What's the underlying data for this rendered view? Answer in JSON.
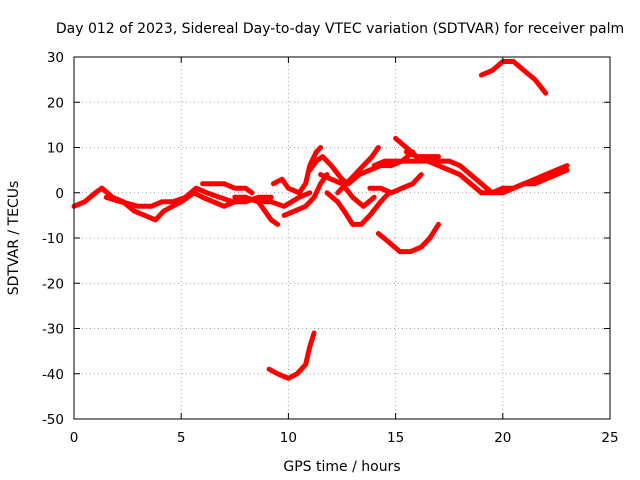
{
  "chart_data": {
    "type": "line",
    "title": "Day 012 of 2023, Sidereal Day-to-day VTEC variation (SDTVAR) for receiver palm",
    "xlabel": "GPS time / hours",
    "ylabel": "SDTVAR / TECUs",
    "xlim": [
      0,
      25
    ],
    "ylim": [
      -50,
      30
    ],
    "xticks": [
      0,
      5,
      10,
      15,
      20,
      25
    ],
    "yticks": [
      -50,
      -40,
      -30,
      -20,
      -10,
      0,
      10,
      20,
      30
    ],
    "xtick_labels": [
      "0",
      "5",
      "10",
      "15",
      "20",
      "25"
    ],
    "ytick_labels": [
      "-50",
      "-40",
      "-30",
      "-20",
      "-10",
      "0",
      "10",
      "20",
      "30"
    ],
    "grid": true,
    "color": "#ff0000",
    "series": [
      {
        "name": "s1",
        "x": [
          0,
          0.5,
          1,
          1.3,
          1.8,
          2.3,
          2.8,
          3.3,
          3.8,
          4.2,
          4.6,
          5.0,
          5.3,
          5.6,
          6.0,
          6.5,
          7.0,
          7.5,
          8.0,
          8.6,
          9.2,
          9.5
        ],
        "y": [
          -3,
          -2,
          0,
          1,
          -1,
          -2,
          -4,
          -5,
          -6,
          -4,
          -3,
          -2,
          -1,
          0,
          -1,
          -2,
          -3,
          -2,
          -1,
          -2,
          -6,
          -7
        ]
      },
      {
        "name": "s2",
        "x": [
          1.5,
          2.2,
          3.0,
          3.6,
          4.1,
          4.6,
          5.2,
          5.7,
          6.2,
          6.8,
          7.4,
          8.0,
          8.6,
          9.2
        ],
        "y": [
          -1,
          -2,
          -3,
          -3,
          -2,
          -2,
          -1,
          1,
          0,
          -1,
          -2,
          -2,
          -1,
          -1
        ]
      },
      {
        "name": "s3",
        "x": [
          6,
          6.5,
          7,
          7.5,
          8,
          8.3
        ],
        "y": [
          2,
          2,
          2,
          1,
          1,
          0
        ]
      },
      {
        "name": "s4",
        "x": [
          7.5,
          8,
          8.6,
          9.2,
          9.8,
          10.5,
          11
        ],
        "y": [
          -1,
          -1,
          -2,
          -2,
          -3,
          -1,
          0
        ]
      },
      {
        "name": "s5",
        "x": [
          9.3,
          9.7,
          10,
          10.5,
          10.8,
          11.0,
          11.3,
          11.5
        ],
        "y": [
          2,
          3,
          1,
          0,
          2,
          6,
          9,
          10
        ]
      },
      {
        "name": "s6",
        "x": [
          9.8,
          10.3,
          10.8,
          11.2,
          11.5,
          11.8
        ],
        "y": [
          -5,
          -4,
          -3,
          -1,
          2,
          4
        ]
      },
      {
        "name": "s7",
        "x": [
          11.0,
          11.3,
          11.6,
          12.0,
          12.5,
          12.8
        ],
        "y": [
          5,
          7,
          8,
          6,
          3,
          2
        ]
      },
      {
        "name": "s8",
        "x": [
          11.5,
          12,
          12.5,
          13,
          13.5,
          14
        ],
        "y": [
          4,
          3,
          2,
          -1,
          -3,
          -1
        ]
      },
      {
        "name": "s9",
        "x": [
          11.8,
          12.3,
          12.6,
          13.0,
          13.4,
          13.8,
          14.3,
          14.7
        ],
        "y": [
          0,
          -2,
          -4,
          -7,
          -7,
          -5,
          -2,
          0
        ]
      },
      {
        "name": "s10",
        "x": [
          12.3,
          12.7,
          13.1,
          13.5,
          13.9,
          14.2
        ],
        "y": [
          0,
          2,
          4,
          6,
          8,
          10
        ]
      },
      {
        "name": "s11",
        "x": [
          12.8,
          13.3,
          13.8,
          14.3,
          14.8,
          15.3,
          15.8
        ],
        "y": [
          2,
          4,
          5,
          6,
          6,
          7,
          9
        ]
      },
      {
        "name": "s12",
        "x": [
          13.8,
          14.3,
          14.8,
          15.3,
          15.8,
          16.2
        ],
        "y": [
          1,
          1,
          0,
          1,
          2,
          4
        ]
      },
      {
        "name": "s13",
        "x": [
          14.0,
          14.5,
          15.0,
          15.5,
          16.0,
          16.5,
          17.0,
          17.5,
          18.0,
          18.5,
          19.0,
          19.5,
          20.0,
          20.5,
          21.0,
          21.5,
          22.0,
          22.5,
          23.0
        ],
        "y": [
          6,
          7,
          7,
          7,
          7,
          7,
          6,
          5,
          4,
          2,
          0,
          0,
          1,
          1,
          2,
          3,
          4,
          5,
          6
        ]
      },
      {
        "name": "s14",
        "x": [
          15.0,
          15.5,
          16,
          16.5,
          17,
          17.5,
          18,
          18.5,
          19,
          19.5,
          20,
          20.5,
          21,
          21.5,
          22,
          22.5,
          23
        ],
        "y": [
          12,
          10,
          8,
          7,
          7,
          7,
          6,
          4,
          2,
          0,
          0,
          1,
          2,
          2,
          3,
          4,
          5
        ]
      },
      {
        "name": "s15",
        "x": [
          15.5,
          16,
          16.5,
          17
        ],
        "y": [
          9,
          8,
          8,
          8
        ]
      },
      {
        "name": "s16",
        "x": [
          14.2,
          14.7,
          15.2,
          15.7,
          16.2,
          16.6,
          17.0
        ],
        "y": [
          -9,
          -11,
          -13,
          -13,
          -12,
          -10,
          -7
        ]
      },
      {
        "name": "s17",
        "x": [
          9.1,
          9.5,
          10,
          10.4,
          10.8,
          11.0,
          11.2
        ],
        "y": [
          -39,
          -40,
          -41,
          -40,
          -38,
          -34,
          -31
        ]
      },
      {
        "name": "s18",
        "x": [
          19.0,
          19.5,
          20.0,
          20.5,
          21.0,
          21.5,
          22.0
        ],
        "y": [
          26,
          27,
          29,
          29,
          27,
          25,
          22
        ]
      }
    ]
  }
}
